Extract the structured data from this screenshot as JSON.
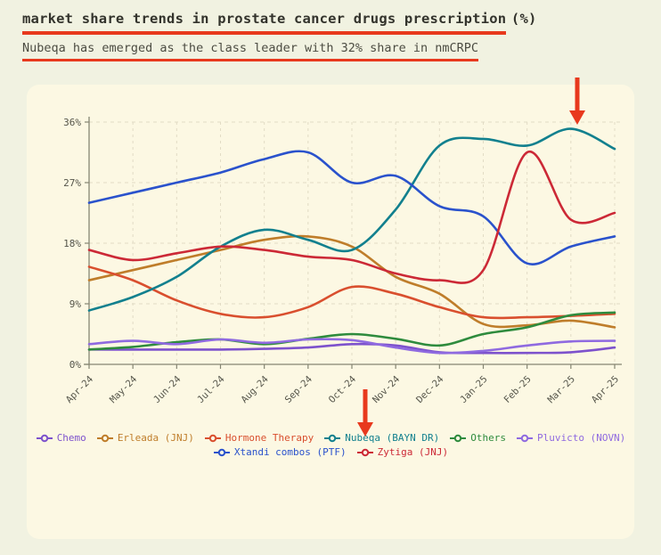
{
  "page": {
    "title": {
      "underlined": "market share trends in prostate cancer drugs prescription",
      "suffix": "(%)"
    },
    "subtitle": "Nubeqa has emerged as the class leader with 32% share in nmCRPC"
  },
  "colors": {
    "accent_red": "#e8391d",
    "page_bg": "#f1f2e1",
    "panel_bg": "#fcf8e3",
    "axis": "#858572",
    "grid": "#e2dcc5",
    "tick_label": "#55554a"
  },
  "annotations": [
    {
      "id": "arrow-top",
      "shape": "red-down-arrow",
      "points_at": "Nubeqa (BAYN DR) line peak at Mar-25"
    },
    {
      "id": "arrow-bottom",
      "shape": "red-down-arrow",
      "points_at": "Nubeqa (BAYN DR) legend entry"
    }
  ],
  "chart_data": {
    "type": "line",
    "smooth": true,
    "grid": true,
    "legend_position": "bottom",
    "title": "market share trends in prostate cancer drugs prescription (%)",
    "xlabel": "",
    "ylabel": "",
    "ylim": [
      0,
      36
    ],
    "yticks": [
      0,
      9,
      18,
      27,
      36
    ],
    "ytick_labels": [
      "0%",
      "9%",
      "18%",
      "27%",
      "36%"
    ],
    "categories": [
      "Apr-24",
      "May-24",
      "Jun-24",
      "Jul-24",
      "Aug-24",
      "Sep-24",
      "Oct-24",
      "Nov-24",
      "Dec-24",
      "Jan-25",
      "Feb-25",
      "Mar-25",
      "Apr-25"
    ],
    "legend_rows": [
      [
        "Chemo",
        "Erleada (JNJ)",
        "Hormone Therapy",
        "Nubeqa (BAYN DR)",
        "Others",
        "Pluvicto (NOVN)"
      ],
      [
        "Xtandi combos (PTF)",
        "Zytiga (JNJ)"
      ]
    ],
    "series": [
      {
        "name": "Chemo",
        "color": "#7d52cc",
        "values": [
          2.2,
          2.2,
          2.2,
          2.2,
          2.3,
          2.5,
          3.0,
          2.8,
          1.8,
          1.7,
          1.7,
          1.8,
          2.5
        ]
      },
      {
        "name": "Erleada (JNJ)",
        "color": "#bf7d2a",
        "values": [
          12.5,
          14.0,
          15.5,
          17.0,
          18.5,
          19.0,
          17.5,
          13.0,
          10.5,
          6.0,
          5.8,
          6.5,
          5.5
        ]
      },
      {
        "name": "Hormone Therapy",
        "color": "#d94f2e",
        "values": [
          14.5,
          12.5,
          9.5,
          7.5,
          7.0,
          8.5,
          11.5,
          10.5,
          8.5,
          7.0,
          7.0,
          7.2,
          7.5
        ]
      },
      {
        "name": "Nubeqa (BAYN DR)",
        "color": "#12808e",
        "values": [
          8.0,
          10.0,
          13.0,
          17.5,
          20.0,
          18.5,
          17.0,
          23.0,
          32.5,
          33.5,
          32.5,
          35.0,
          32.0
        ]
      },
      {
        "name": "Others",
        "color": "#2e8b3d",
        "values": [
          2.2,
          2.6,
          3.3,
          3.7,
          3.0,
          3.8,
          4.5,
          3.8,
          2.8,
          4.5,
          5.5,
          7.3,
          7.7
        ]
      },
      {
        "name": "Pluvicto (NOVN)",
        "color": "#8f6ae0",
        "values": [
          3.0,
          3.5,
          3.0,
          3.7,
          3.2,
          3.7,
          3.6,
          2.5,
          1.7,
          2.0,
          2.8,
          3.4,
          3.5
        ]
      },
      {
        "name": "Xtandi combos (PTF)",
        "color": "#2a52cc",
        "values": [
          24.0,
          25.5,
          27.0,
          28.5,
          30.5,
          31.5,
          27.0,
          28.0,
          23.5,
          22.0,
          15.0,
          17.5,
          19.0
        ]
      },
      {
        "name": "Zytiga (JNJ)",
        "color": "#cc2936",
        "values": [
          17.0,
          15.5,
          16.5,
          17.5,
          17.0,
          16.0,
          15.5,
          13.5,
          12.5,
          14.0,
          31.5,
          21.5,
          22.5
        ]
      }
    ]
  }
}
